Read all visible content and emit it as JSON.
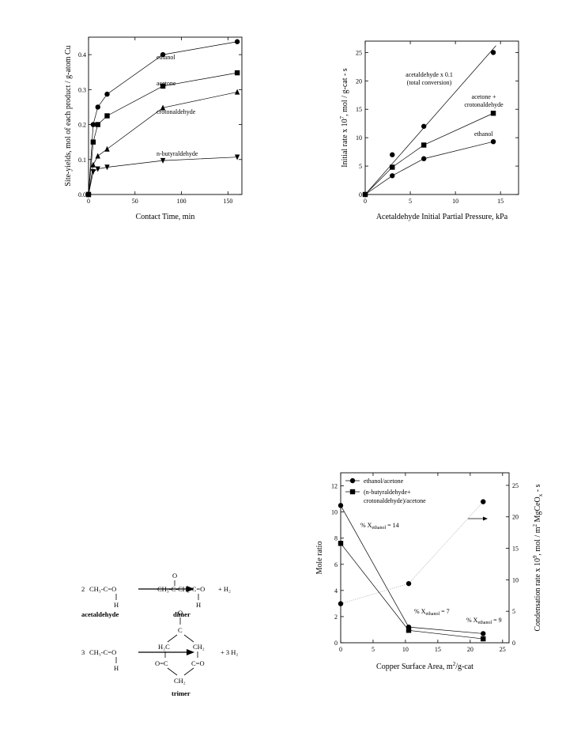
{
  "chart_data": [
    {
      "type": "line",
      "xlabel": "Contact Time, min",
      "ylabel": "Site-yields, mol of each product / g-atom Cu",
      "xlim": [
        0,
        165
      ],
      "ylim": [
        0,
        0.45
      ],
      "xticks": [
        0,
        50,
        100,
        150
      ],
      "yticks": [
        0.0,
        0.1,
        0.2,
        0.3,
        0.4
      ],
      "ytick_labels": [
        "0.0",
        "0.1",
        "0.2",
        "0.3",
        "0.4"
      ],
      "series": [
        {
          "name": "ethanol",
          "marker": "circle",
          "x": [
            0,
            5,
            10,
            20,
            80,
            160
          ],
          "y": [
            0,
            0.2,
            0.25,
            0.287,
            0.4,
            0.437
          ]
        },
        {
          "name": "acetone",
          "marker": "square",
          "x": [
            0,
            5,
            10,
            20,
            80,
            160
          ],
          "y": [
            0,
            0.15,
            0.2,
            0.225,
            0.31,
            0.348
          ]
        },
        {
          "name": "crotonaldehyde",
          "marker": "triangle",
          "x": [
            0,
            5,
            10,
            20,
            80,
            160
          ],
          "y": [
            0,
            0.085,
            0.11,
            0.13,
            0.248,
            0.293
          ]
        },
        {
          "name": "n-butyraldehyde",
          "marker": "triangle-down",
          "x": [
            0,
            5,
            10,
            20,
            80,
            160
          ],
          "y": [
            0,
            0.065,
            0.073,
            0.078,
            0.097,
            0.107
          ]
        }
      ],
      "annotations": [
        "ethanol",
        "acetone",
        "crotonaldehyde",
        "n-butyraldehyde"
      ]
    },
    {
      "type": "line",
      "xlabel": "Acetaldehyde Initial Partial Pressure, kPa",
      "ylabel": "Initial rate x 10⁷, mol / g-cat - s",
      "xlim": [
        0,
        17
      ],
      "ylim": [
        0,
        27
      ],
      "xticks": [
        0,
        5,
        10,
        15
      ],
      "yticks": [
        0,
        5,
        10,
        15,
        20,
        25
      ],
      "series": [
        {
          "name": "acetaldehyde x 0.1 (total conversion)",
          "marker": "circle",
          "x": [
            0,
            3,
            6.5,
            14.2
          ],
          "y": [
            0,
            7,
            12,
            25
          ],
          "fit_line": {
            "x": [
              0,
              14.5
            ],
            "y": [
              0,
              26.2
            ]
          }
        },
        {
          "name": "acetone + crotonaldehyde",
          "marker": "square",
          "x": [
            0,
            3,
            6.5,
            14.2
          ],
          "y": [
            0,
            4.8,
            8.7,
            14.3
          ]
        },
        {
          "name": "ethanol",
          "marker": "circle",
          "x": [
            0,
            3,
            6.5,
            14.2
          ],
          "y": [
            0,
            3.3,
            6.3,
            9.3
          ]
        }
      ],
      "annotations": [
        "acetaldehyde x 0.1",
        "(total conversion)",
        "acetone +",
        "crotonaldehyde",
        "ethanol"
      ]
    },
    {
      "type": "line",
      "xlabel": "Copper Surface Area,",
      "xlabel_unit": "m",
      "xlabel_unit_sup": "2",
      "xlabel_unit_rest": "/g-cat",
      "ylabel": "Mole ratio",
      "y2label": "Condensation rate x 10⁹, mol / m² MgCeOₓ - s",
      "xlim": [
        0,
        26
      ],
      "ylim": [
        0,
        13
      ],
      "y2lim": [
        0,
        27
      ],
      "xticks": [
        0,
        5,
        10,
        15,
        20,
        25
      ],
      "yticks": [
        0,
        2,
        4,
        6,
        8,
        10,
        12
      ],
      "y2ticks": [
        0,
        5,
        10,
        15,
        20,
        25
      ],
      "legend": [
        "ethanol/acetone",
        "(n-butyraldehyde+",
        "crotonaldehyde)/acetone"
      ],
      "legend_placement": "top-left",
      "series": [
        {
          "name": "ethanol/acetone",
          "marker": "circle",
          "axis": "left",
          "x": [
            0,
            10.5,
            22
          ],
          "y": [
            10.5,
            1.2,
            0.7
          ]
        },
        {
          "name": "(n-butyraldehyde+crotonaldehyde)/acetone",
          "marker": "square",
          "axis": "left",
          "x": [
            0,
            10.5,
            22
          ],
          "y": [
            7.6,
            0.95,
            0.3
          ]
        },
        {
          "name": "condensation rate",
          "marker": "circle",
          "axis": "right",
          "x": [
            0,
            10.5,
            22
          ],
          "y": [
            6.2,
            9.4,
            22.4
          ]
        }
      ],
      "annotations": [
        {
          "text": "% X",
          "sub": "ethanol",
          "rest": " = 14"
        },
        {
          "text": "% X",
          "sub": "ethanol",
          "rest": " = 7"
        },
        {
          "text": "% X",
          "sub": "ethanol",
          "rest": " = 9"
        }
      ]
    }
  ],
  "scheme": {
    "row1": {
      "coef": "2",
      "reactant": "CH₃-C=O",
      "h": "H",
      "name": "acetaldehyde",
      "product_o": "O",
      "product": "CH₃-C-CH₂-C=O",
      "product_h": "H",
      "product_name": "dimer",
      "plus": "+  H₂"
    },
    "row2": {
      "coef": "3",
      "reactant": "CH₃-C=O",
      "h": "H",
      "top_o": "O",
      "c_top": "C",
      "left": "H₂C",
      "right": "CH₂",
      "left2": "O=C",
      "right2": "C=O",
      "bottom": "CH₂",
      "plus": "+  3 H₂",
      "product_name": "trimer"
    }
  }
}
